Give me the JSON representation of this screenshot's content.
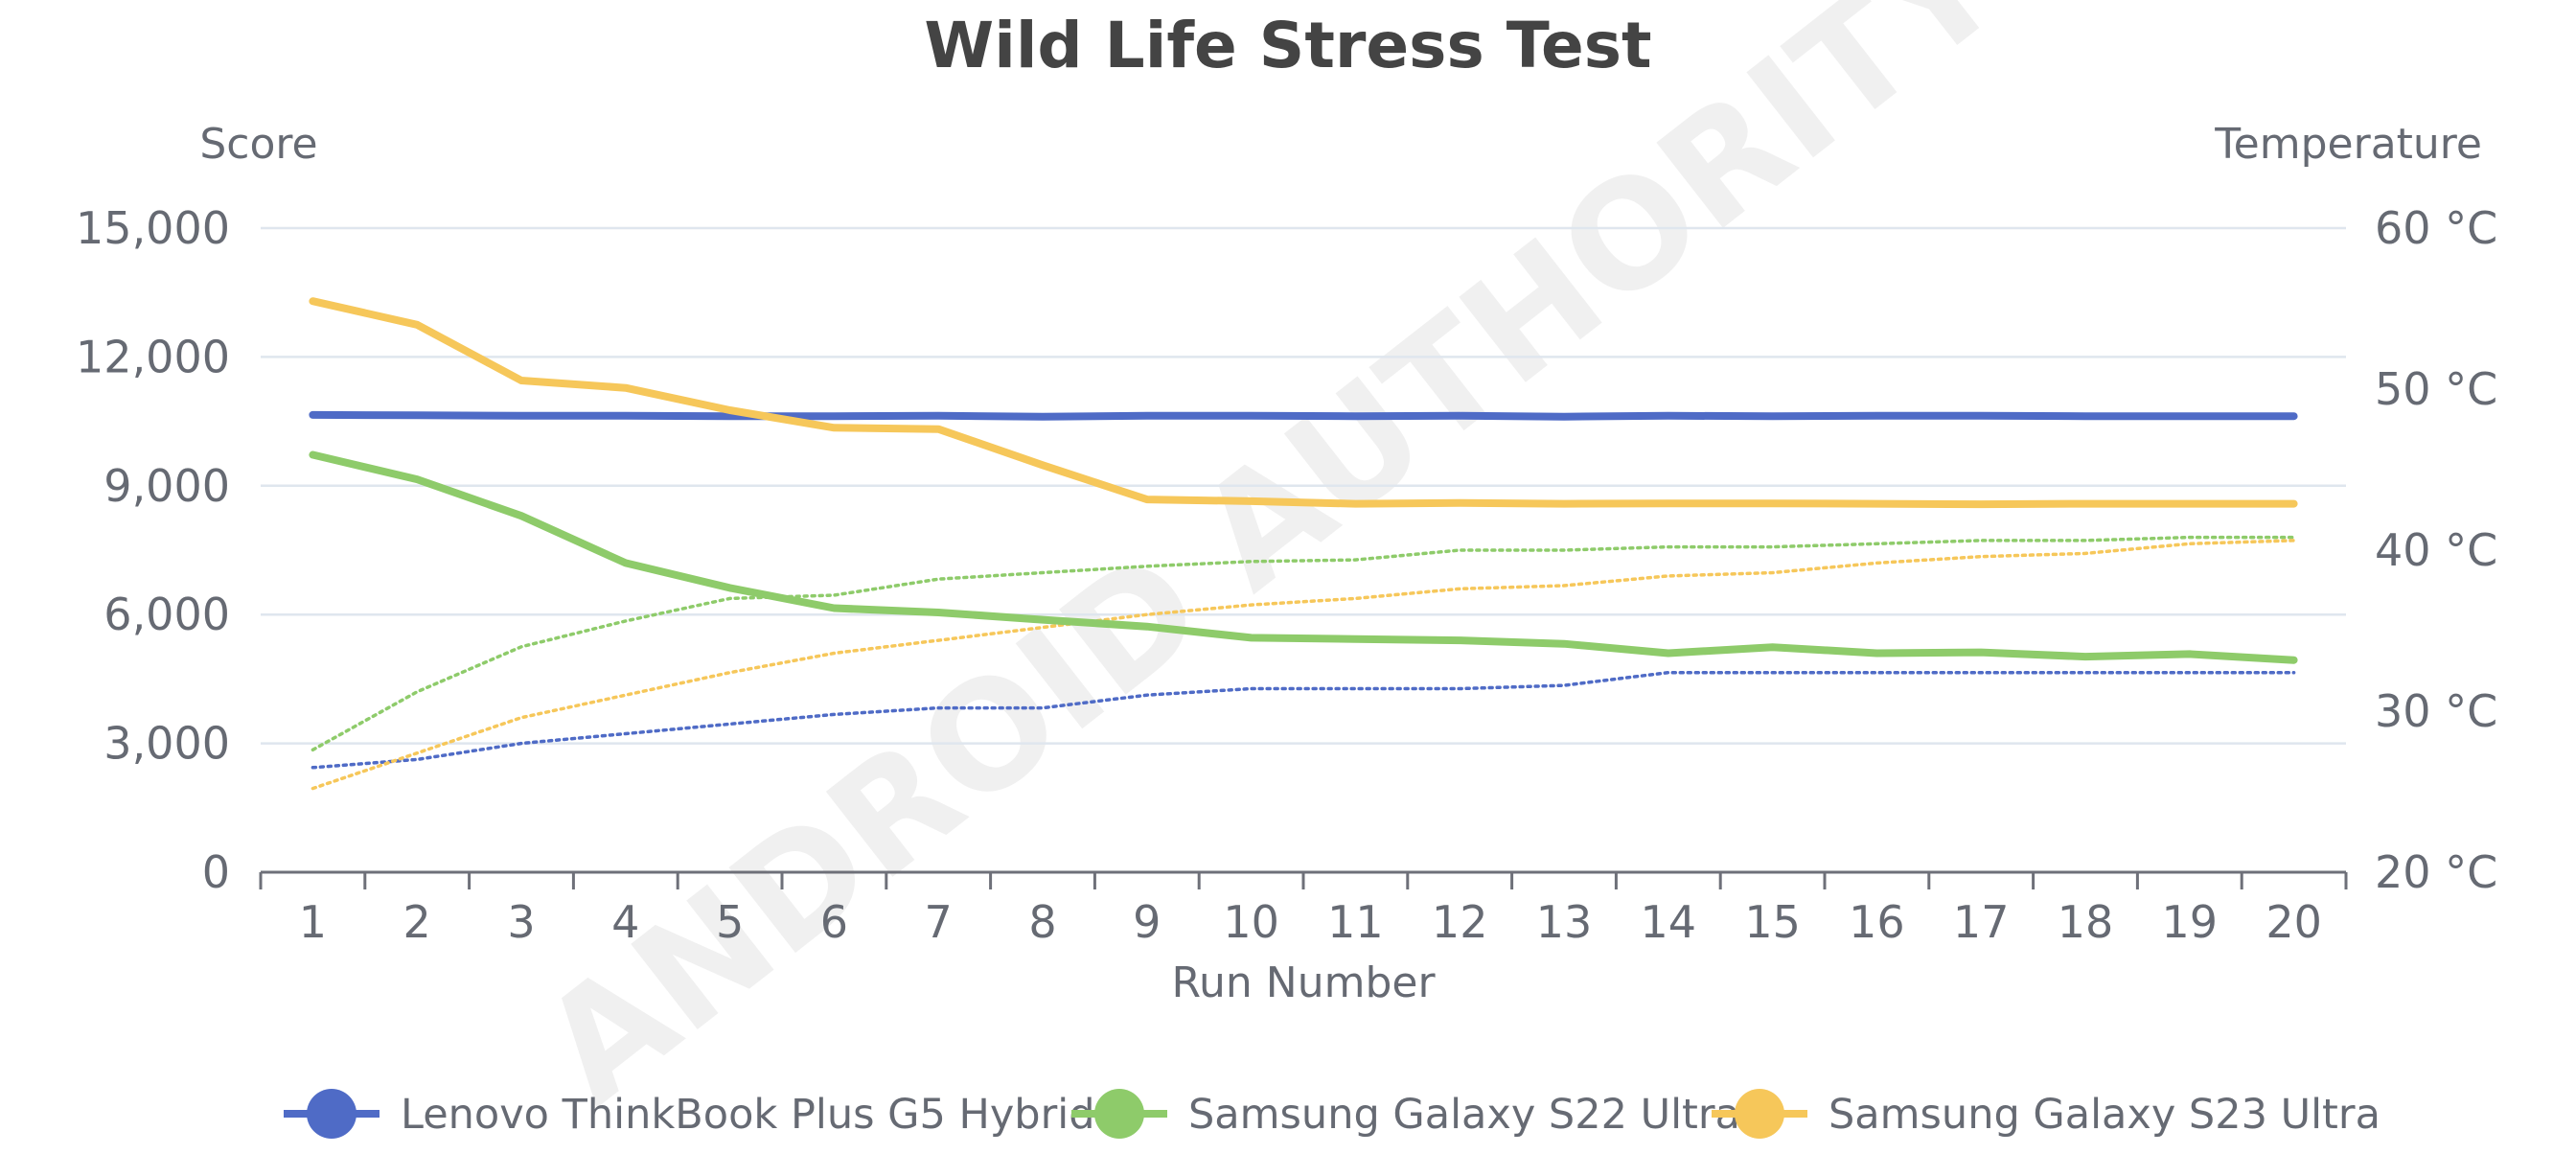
{
  "chart_data": {
    "type": "line",
    "title": "Wild Life Stress Test",
    "xlabel": "Run Number",
    "ylabel_left": "Score",
    "ylabel_right": "Temperature",
    "x": [
      1,
      2,
      3,
      4,
      5,
      6,
      7,
      8,
      9,
      10,
      11,
      12,
      13,
      14,
      15,
      16,
      17,
      18,
      19,
      20
    ],
    "x_tick_labels": [
      "1",
      "2",
      "3",
      "4",
      "5",
      "6",
      "7",
      "8",
      "9",
      "10",
      "11",
      "12",
      "13",
      "14",
      "15",
      "16",
      "17",
      "18",
      "19",
      "20"
    ],
    "ylim_left": [
      0,
      15000
    ],
    "ylim_right": [
      20,
      60
    ],
    "y_left_tick_values": [
      0,
      3000,
      6000,
      9000,
      12000,
      15000
    ],
    "y_left_tick_labels": [
      "0",
      "3,000",
      "6,000",
      "9,000",
      "12,000",
      "15,000"
    ],
    "y_right_tick_values": [
      20,
      30,
      40,
      50,
      60
    ],
    "y_right_tick_labels": [
      "20 °C",
      "30 °C",
      "40 °C",
      "50 °C",
      "60 °C"
    ],
    "grid": true,
    "legend_position": "bottom-center",
    "watermark": "ANDROID AUTHORITY",
    "series": [
      {
        "name": "Lenovo ThinkBook Plus G5 Hybrid",
        "color": "#4f6bc6",
        "score": [
          10650,
          10640,
          10630,
          10630,
          10620,
          10620,
          10630,
          10610,
          10630,
          10630,
          10620,
          10630,
          10610,
          10630,
          10620,
          10630,
          10630,
          10620,
          10620,
          10620
        ],
        "temperature": [
          26.5,
          27.0,
          28.0,
          28.6,
          29.2,
          29.8,
          30.2,
          30.2,
          31.0,
          31.4,
          31.4,
          31.4,
          31.6,
          32.4,
          32.4,
          32.4,
          32.4,
          32.4,
          32.4,
          32.4
        ]
      },
      {
        "name": "Samsung Galaxy S22 Ultra",
        "color": "#8ecb6a",
        "score": [
          9720,
          9150,
          8300,
          7200,
          6620,
          6150,
          6050,
          5880,
          5720,
          5460,
          5430,
          5400,
          5320,
          5100,
          5240,
          5100,
          5120,
          5020,
          5080,
          4940
        ],
        "temperature": [
          27.6,
          31.2,
          34.0,
          35.6,
          37.0,
          37.2,
          38.2,
          38.6,
          39.0,
          39.3,
          39.4,
          40.0,
          40.0,
          40.2,
          40.2,
          40.4,
          40.6,
          40.6,
          40.8,
          40.8
        ]
      },
      {
        "name": "Samsung Galaxy S23 Ultra",
        "color": "#f6c75a",
        "score": [
          13300,
          12750,
          11450,
          11280,
          10760,
          10350,
          10320,
          9480,
          8680,
          8640,
          8580,
          8600,
          8580,
          8590,
          8590,
          8580,
          8570,
          8580,
          8580,
          8580
        ],
        "temperature": [
          25.2,
          27.4,
          29.6,
          31.0,
          32.4,
          33.6,
          34.4,
          35.2,
          36.0,
          36.6,
          37.0,
          37.6,
          37.8,
          38.4,
          38.6,
          39.2,
          39.6,
          39.8,
          40.4,
          40.6
        ]
      }
    ]
  }
}
